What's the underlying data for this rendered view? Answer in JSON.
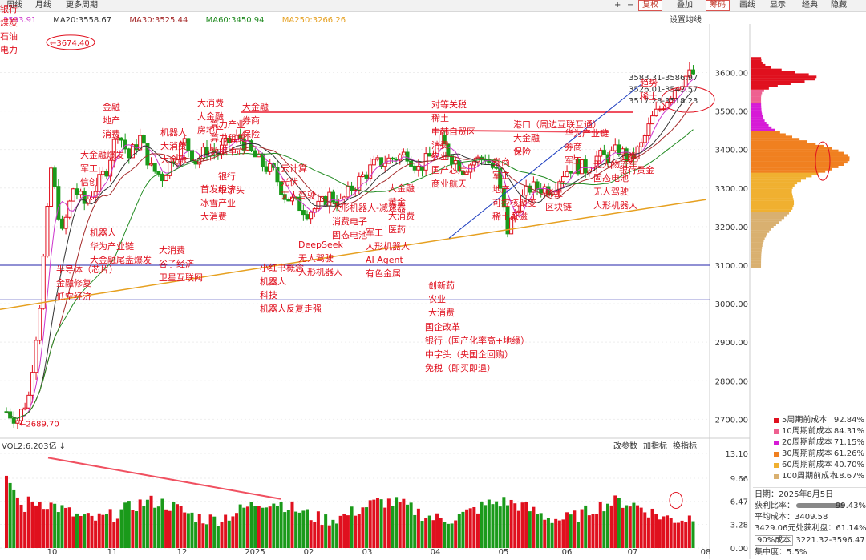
{
  "toolbar": {
    "items": [
      "周线",
      "月线",
      "更多周期"
    ],
    "right_items": [
      "复权",
      "叠加",
      "筹码",
      "画线",
      "显示",
      "经典",
      "隐藏"
    ],
    "icons": [
      "plus-icon",
      "minus-icon"
    ]
  },
  "ma_legend": [
    {
      "label": "3593.91",
      "color": "#cc33cc"
    },
    {
      "label": "MA20:3558.67",
      "color": "#333333"
    },
    {
      "label": "MA30:3525.44",
      "color": "#a52a2a"
    },
    {
      "label": "MA60:3450.94",
      "color": "#228b22"
    },
    {
      "label": "MA250:3266.26",
      "color": "#e6a020"
    }
  ],
  "settings_label": "设置均线",
  "price_axis": [
    "3600.00",
    "3500.00",
    "3400.00",
    "3300.00",
    "3200.00",
    "3100.00",
    "3000.00",
    "2900.00",
    "2800.00",
    "2700.00"
  ],
  "x_axis": [
    "10",
    "11",
    "12",
    "2025",
    "02",
    "03",
    "04",
    "05",
    "06",
    "07",
    "08"
  ],
  "vol_axis": [
    "13.10",
    "9.66",
    "6.47",
    "3.28",
    "0.00"
  ],
  "vol_title": "VOL2:6.203亿",
  "vol_controls": [
    "改参数",
    "加指标",
    "换指标"
  ],
  "price_markers": {
    "high": "3674.40",
    "low": "2689.70"
  },
  "chip_labels": [
    "3583.31-3586.97",
    "3526.01-3542.57",
    "3517.28-3518.23"
  ],
  "annotations": [
    {
      "text": "银行"
    },
    {
      "text": "煤炭"
    },
    {
      "text": "石油"
    },
    {
      "text": "电力"
    },
    {
      "text": "半导体（芯片）"
    },
    {
      "text": "金融修复"
    },
    {
      "text": "低空经济"
    },
    {
      "text": "金融"
    },
    {
      "text": "地产"
    },
    {
      "text": "消费"
    },
    {
      "text": "大金融爆发"
    },
    {
      "text": "军工"
    },
    {
      "text": "信创"
    },
    {
      "text": "机器人"
    },
    {
      "text": "华为产业链"
    },
    {
      "text": "大金融尾盘爆发"
    },
    {
      "text": "机器人"
    },
    {
      "text": "大消费"
    },
    {
      "text": "大金融"
    },
    {
      "text": "大消费"
    },
    {
      "text": "谷子经济"
    },
    {
      "text": "卫星互联网"
    },
    {
      "text": "大消费"
    },
    {
      "text": "大金融"
    },
    {
      "text": "房地产"
    },
    {
      "text": "算力产业"
    },
    {
      "text": "算力租赁"
    },
    {
      "text": "数据中心"
    },
    {
      "text": "首发经济"
    },
    {
      "text": "冰雪产业"
    },
    {
      "text": "大消费"
    },
    {
      "text": "银行"
    },
    {
      "text": "中字头"
    },
    {
      "text": "大金融"
    },
    {
      "text": "券商"
    },
    {
      "text": "保险"
    },
    {
      "text": "云计算"
    },
    {
      "text": "光伏"
    },
    {
      "text": "无人驾驶"
    },
    {
      "text": "DeepSeek"
    },
    {
      "text": "无人驾驶"
    },
    {
      "text": "人形机器人"
    },
    {
      "text": "小红书概念"
    },
    {
      "text": "机器人"
    },
    {
      "text": "科技"
    },
    {
      "text": "机器人反复走强"
    },
    {
      "text": "人形机器人-减速器"
    },
    {
      "text": "消费电子"
    },
    {
      "text": "固态电池"
    },
    {
      "text": "军工"
    },
    {
      "text": "人形机器人"
    },
    {
      "text": "AI Agent"
    },
    {
      "text": "有色金属"
    },
    {
      "text": "大金融"
    },
    {
      "text": "黄金"
    },
    {
      "text": "大消费"
    },
    {
      "text": "医药"
    },
    {
      "text": "对等关税"
    },
    {
      "text": "稀土"
    },
    {
      "text": "中韩自贸区"
    },
    {
      "text": "消费"
    },
    {
      "text": "农业"
    },
    {
      "text": "国产芯片"
    },
    {
      "text": "商业航天"
    },
    {
      "text": "创新药"
    },
    {
      "text": "农业"
    },
    {
      "text": "大消费"
    },
    {
      "text": "国企改革"
    },
    {
      "text": "银行（国产化率高+地缘）"
    },
    {
      "text": "中字头（央国企回购）"
    },
    {
      "text": "免税（即买即退）"
    },
    {
      "text": "港口（周边互联互通）"
    },
    {
      "text": "大金融"
    },
    {
      "text": "保险"
    },
    {
      "text": "券商"
    },
    {
      "text": "军工"
    },
    {
      "text": "地产"
    },
    {
      "text": "可控核聚变"
    },
    {
      "text": "稀土永磁"
    },
    {
      "text": "华为产业链"
    },
    {
      "text": "券商"
    },
    {
      "text": "军工"
    },
    {
      "text": "稀土"
    },
    {
      "text": "区块链"
    },
    {
      "text": "无人物流车"
    },
    {
      "text": "固态电池"
    },
    {
      "text": "无人驾驶"
    },
    {
      "text": "人形机器人"
    },
    {
      "text": "证券"
    },
    {
      "text": "银行贵金"
    },
    {
      "text": "趋势"
    },
    {
      "text": "稀土"
    },
    {
      "text": "证券"
    }
  ],
  "chip_legend": [
    {
      "label": "5周期前成本",
      "value": "92.84%",
      "color": "#e0101e"
    },
    {
      "label": "10周期前成本",
      "value": "84.31%",
      "color": "#ee6090"
    },
    {
      "label": "20周期前成本",
      "value": "71.15%",
      "color": "#d61ad6"
    },
    {
      "label": "30周期前成本",
      "value": "61.26%",
      "color": "#f08020"
    },
    {
      "label": "60周期前成本",
      "value": "40.70%",
      "color": "#f0b030"
    },
    {
      "label": "100周期前成本",
      "value": "18.67%",
      "color": "#d9b070"
    }
  ],
  "info": {
    "date_label": "日期：",
    "date": "2025年8月5日",
    "profit_label": "获利比率：",
    "profit": "99.43%",
    "avg_label": "平均成本：",
    "avg": "3409.58",
    "profit_line": "3429.06元处获利盘：61.14%",
    "cost90_select": "90%成本",
    "cost90": "3221.32-3596.47",
    "concentration_label": "集中度：",
    "concentration": "5.5%"
  },
  "chart_data": {
    "type": "candlestick",
    "title": "",
    "y_range": [
      2680,
      3680
    ],
    "horizontal_lines": [
      3100,
      3010
    ],
    "x_ticks": [
      "10",
      "11",
      "12",
      "2025",
      "02",
      "03",
      "04",
      "05",
      "06",
      "07",
      "08"
    ],
    "close_path": [
      2720,
      2700,
      2760,
      3000,
      3350,
      3180,
      3300,
      3260,
      3300,
      3350,
      3450,
      3380,
      3430,
      3350,
      3330,
      3380,
      3420,
      3370,
      3400,
      3390,
      3420,
      3430,
      3390,
      3360,
      3340,
      3280,
      3260,
      3240,
      3250,
      3280,
      3260,
      3300,
      3330,
      3360,
      3370,
      3380,
      3390,
      3350,
      3380,
      3420,
      3380,
      3350,
      3370,
      3380,
      3340,
      3190,
      3260,
      3300,
      3300,
      3300,
      3340,
      3360,
      3350,
      3380,
      3380,
      3400,
      3370,
      3410,
      3480,
      3520,
      3560,
      3590,
      3600
    ]
  }
}
